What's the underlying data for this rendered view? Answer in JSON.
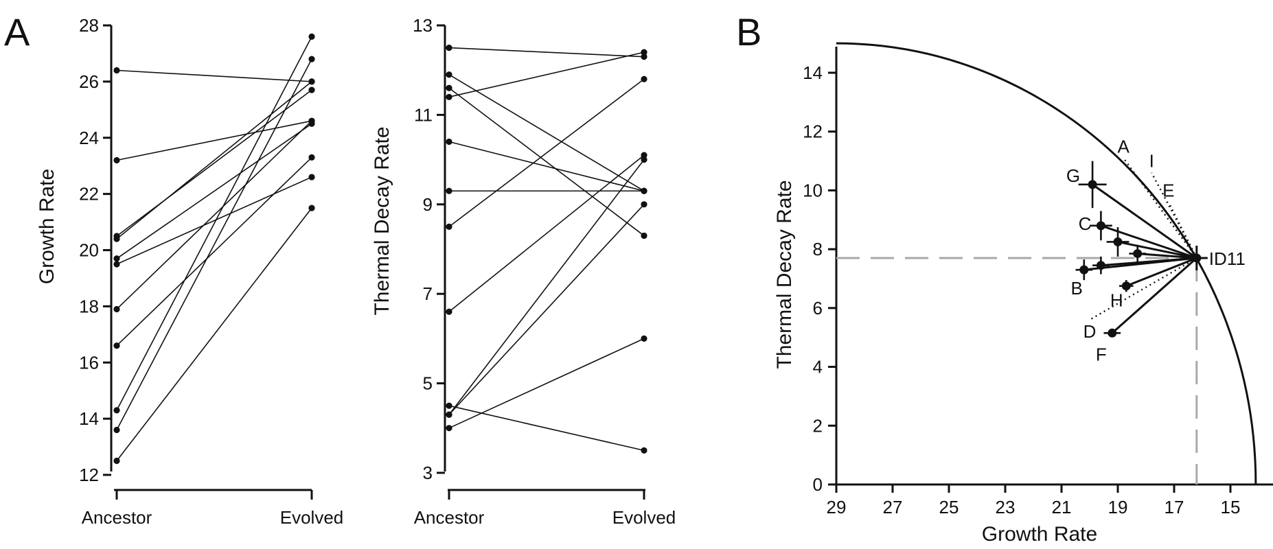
{
  "panel_labels": [
    "A",
    "B"
  ],
  "chart_data": [
    {
      "type": "line",
      "panel": "A",
      "ylabel": "Growth Rate",
      "categories": [
        "Ancestor",
        "Evolved"
      ],
      "yticks": [
        12,
        14,
        16,
        18,
        20,
        22,
        24,
        26,
        28
      ],
      "ylim": [
        12,
        28
      ],
      "grid": false,
      "pairs": [
        [
          26.4,
          26.0
        ],
        [
          23.2,
          24.6
        ],
        [
          20.5,
          25.7
        ],
        [
          20.4,
          26.0
        ],
        [
          19.7,
          24.5
        ],
        [
          19.5,
          22.6
        ],
        [
          17.9,
          24.6
        ],
        [
          16.6,
          23.3
        ],
        [
          14.3,
          27.6
        ],
        [
          13.6,
          26.8
        ],
        [
          12.5,
          21.5
        ]
      ]
    },
    {
      "type": "line",
      "panel": "A",
      "ylabel": "Thermal Decay Rate",
      "categories": [
        "Ancestor",
        "Evolved"
      ],
      "yticks": [
        3,
        5,
        7,
        9,
        11,
        13
      ],
      "ylim": [
        3,
        13
      ],
      "grid": false,
      "pairs": [
        [
          12.5,
          12.3
        ],
        [
          11.9,
          9.3
        ],
        [
          11.6,
          8.3
        ],
        [
          11.4,
          12.4
        ],
        [
          10.4,
          9.3
        ],
        [
          9.3,
          9.3
        ],
        [
          8.5,
          11.8
        ],
        [
          6.6,
          10.1
        ],
        [
          4.5,
          3.5
        ],
        [
          4.3,
          9.0
        ],
        [
          4.0,
          6.0
        ],
        [
          4.3,
          10.0
        ]
      ]
    },
    {
      "type": "scatter",
      "panel": "B",
      "xlabel": "Growth Rate",
      "ylabel": "Thermal Decay Rate",
      "xticks": [
        29,
        27,
        25,
        23,
        21,
        19,
        17,
        15
      ],
      "yticks": [
        0,
        2,
        4,
        6,
        8,
        10,
        12,
        14
      ],
      "xlim": [
        29,
        14.1
      ],
      "ylim": [
        0,
        15
      ],
      "x_reversed": true,
      "grid": false,
      "origin": {
        "name": "ID11",
        "x": 16.2,
        "y": 7.7
      },
      "points": [
        {
          "name": "G",
          "x": 19.9,
          "y": 10.2,
          "xerr": 0.5,
          "yerr": 0.8
        },
        {
          "name": "C",
          "x": 19.6,
          "y": 8.8,
          "xerr": 0.4,
          "yerr": 0.5
        },
        {
          "name": "",
          "x": 19.0,
          "y": 8.25,
          "xerr": 0.4,
          "yerr": 0.5
        },
        {
          "name": "",
          "x": 18.3,
          "y": 7.85,
          "xerr": 0.3,
          "yerr": 0.3
        },
        {
          "name": "B",
          "x": 20.2,
          "y": 7.3,
          "xerr": 0.3,
          "yerr": 0.35
        },
        {
          "name": "",
          "x": 19.6,
          "y": 7.45,
          "xerr": 0.3,
          "yerr": 0.3
        },
        {
          "name": "H",
          "x": 18.7,
          "y": 6.75,
          "xerr": 0.25,
          "yerr": 0.2
        },
        {
          "name": "F",
          "x": 19.2,
          "y": 5.15,
          "xerr": 0.3,
          "yerr": 0.1
        }
      ],
      "dotted_labels": [
        {
          "name": "A",
          "x": 18.8,
          "y": 11.1
        },
        {
          "name": "I",
          "x": 17.8,
          "y": 10.6
        },
        {
          "name": "E",
          "x": 17.2,
          "y": 9.6
        },
        {
          "name": "D",
          "x": 20.0,
          "y": 5.6
        }
      ],
      "reference_lines": {
        "x": 16.2,
        "y": 7.7,
        "style": "dashed",
        "color": "#a8a8a8"
      },
      "boundary": "quarter-circle",
      "colors": {
        "lines": "#111111",
        "reference": "#a8a8a8"
      }
    }
  ]
}
